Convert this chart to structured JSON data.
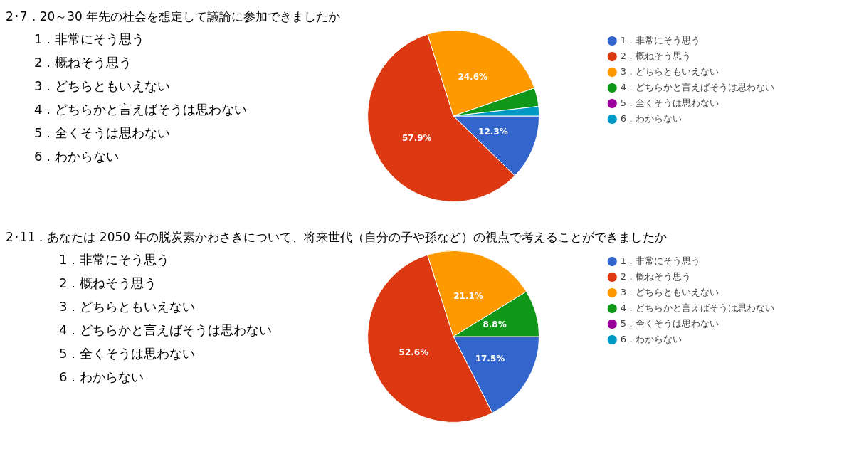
{
  "chart_data": [
    {
      "type": "pie",
      "title": "2･7．20～30 年先の社会を想定して議論に参加できましたか",
      "categories": [
        "1．非常にそう思う",
        "2．概ねそう思う",
        "3．どちらともいえない",
        "4．どちらかと言えばそうは思わない",
        "5．全くそうは思わない",
        "6．わからない"
      ],
      "values": [
        12.3,
        57.9,
        24.6,
        3.5,
        0,
        1.8
      ],
      "colors": [
        "#3366cc",
        "#dc3912",
        "#ff9900",
        "#109618",
        "#990099",
        "#0099c6"
      ],
      "value_labels": [
        "12.3%",
        "57.9%",
        "24.6%",
        null,
        null,
        null
      ],
      "legend": "right",
      "annotations": [
        "1．非常にそう思う",
        "2．概ねそう思う",
        "3．どちらともいえない",
        "4．どちらかと言えばそうは思わない",
        "5．全くそうは思わない",
        "6．わからない"
      ]
    },
    {
      "type": "pie",
      "title": "2･11．あなたは 2050 年の脱炭素かわさきについて、将来世代（自分の子や孫など）の視点で考えることができましたか",
      "categories": [
        "1．非常にそう思う",
        "2．概ねそう思う",
        "3．どちらともいえない",
        "4．どちらかと言えばそうは思わない",
        "5．全くそうは思わない",
        "6．わからない"
      ],
      "values": [
        17.5,
        52.6,
        21.1,
        8.8,
        0,
        0
      ],
      "colors": [
        "#3366cc",
        "#dc3912",
        "#ff9900",
        "#109618",
        "#990099",
        "#0099c6"
      ],
      "value_labels": [
        "17.5%",
        "52.6%",
        "21.1%",
        "8.8%",
        null,
        null
      ],
      "legend": "right",
      "annotations": [
        "1．非常にそう思う",
        "2．概ねそう思う",
        "3．どちらともいえない",
        "4．どちらかと言えばそうは思わない",
        "5．全くそうは思わない",
        "6．わからない"
      ]
    }
  ]
}
